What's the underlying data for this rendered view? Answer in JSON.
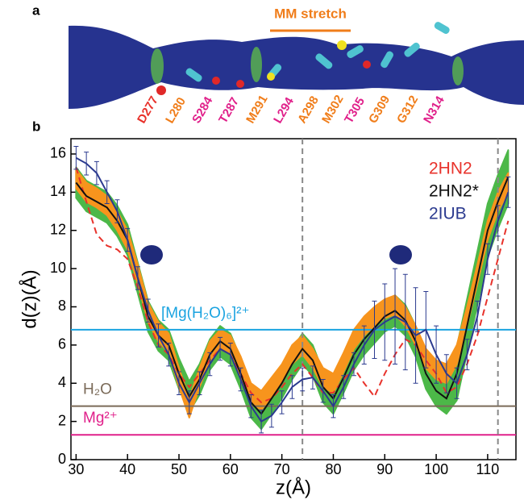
{
  "panel_a": {
    "label": "a",
    "title": "MM stretch",
    "title_color": "#f07d1a",
    "residues": [
      {
        "text": "D277",
        "color": "#e8322b"
      },
      {
        "text": "L280",
        "color": "#f07d1a"
      },
      {
        "text": "S284",
        "color": "#e0208a"
      },
      {
        "text": "T287",
        "color": "#e0208a"
      },
      {
        "text": "M291",
        "color": "#f07d1a"
      },
      {
        "text": "L294",
        "color": "#e0208a"
      },
      {
        "text": "A298",
        "color": "#f07d1a"
      },
      {
        "text": "M302",
        "color": "#f07d1a"
      },
      {
        "text": "T305",
        "color": "#e0208a"
      },
      {
        "text": "G309",
        "color": "#f07d1a"
      },
      {
        "text": "G312",
        "color": "#f07d1a"
      },
      {
        "text": "N314",
        "color": "#e0208a"
      }
    ]
  },
  "chart_data": {
    "type": "line",
    "label": "b",
    "x_label": "z(Å)",
    "y_label": "d(z)(Å)",
    "xlim": [
      29,
      115.5
    ],
    "ylim": [
      0,
      16.8
    ],
    "xticks": [
      30,
      40,
      50,
      60,
      70,
      80,
      90,
      100,
      110
    ],
    "yticks": [
      0,
      2,
      4,
      6,
      8,
      10,
      12,
      14,
      16
    ],
    "legend": "upper right",
    "x": [
      30,
      32,
      34,
      36,
      38,
      40,
      42,
      44,
      46,
      48,
      50,
      52,
      54,
      56,
      58,
      60,
      62,
      64,
      66,
      68,
      70,
      72,
      74,
      76,
      78,
      80,
      82,
      84,
      86,
      88,
      90,
      92,
      94,
      96,
      98,
      100,
      102,
      104,
      106,
      108,
      110,
      112,
      114
    ],
    "bands": [
      {
        "color": "#4cb848",
        "lower": [
          13.7,
          13.0,
          12.7,
          12.4,
          11.7,
          10.7,
          8.7,
          6.7,
          5.7,
          5.2,
          3.7,
          2.5,
          3.4,
          4.7,
          5.4,
          5.0,
          3.7,
          2.2,
          1.6,
          2.4,
          3.2,
          4.2,
          5.0,
          4.4,
          3.0,
          2.4,
          3.5,
          4.7,
          5.5,
          6.1,
          6.7,
          7.0,
          6.5,
          5.4,
          3.7,
          2.8,
          2.4,
          3.1,
          5.6,
          8.1,
          10.6,
          12.1,
          13.4
        ],
        "upper": [
          15.3,
          14.6,
          14.3,
          14.0,
          13.3,
          12.3,
          10.3,
          8.3,
          7.3,
          6.8,
          5.3,
          4.1,
          5.0,
          6.3,
          7.0,
          6.6,
          5.3,
          3.8,
          3.2,
          4.0,
          4.8,
          5.8,
          6.6,
          6.0,
          4.6,
          4.0,
          5.1,
          6.3,
          7.1,
          7.7,
          8.3,
          8.6,
          8.1,
          7.0,
          5.3,
          4.4,
          4.0,
          5.9,
          8.4,
          10.9,
          13.4,
          14.9,
          16.2
        ]
      },
      {
        "color": "#f7941d",
        "lower": [
          14.2,
          13.5,
          13.2,
          12.8,
          12.0,
          11.0,
          9.2,
          7.2,
          6.2,
          5.6,
          3.8,
          2.2,
          3.8,
          5.2,
          5.8,
          5.5,
          4.4,
          3.0,
          2.6,
          3.3,
          4.0,
          5.0,
          5.5,
          4.8,
          3.8,
          3.5,
          4.6,
          5.8,
          6.5,
          7.0,
          7.4,
          7.6,
          7.0,
          6.0,
          4.8,
          4.2,
          4.0,
          5.0,
          7.0,
          9.2,
          11.5,
          13.0,
          14.0
        ],
        "upper": [
          15.2,
          14.5,
          14.2,
          13.8,
          13.0,
          12.0,
          10.2,
          8.2,
          7.2,
          6.6,
          4.8,
          3.2,
          4.8,
          6.2,
          6.8,
          6.5,
          5.4,
          4.0,
          3.6,
          4.3,
          5.0,
          6.0,
          6.5,
          5.8,
          4.8,
          4.5,
          5.6,
          6.8,
          7.5,
          8.0,
          8.4,
          8.6,
          8.0,
          7.0,
          5.8,
          5.2,
          5.0,
          6.0,
          8.0,
          10.2,
          12.5,
          14.0,
          15.0
        ]
      }
    ],
    "series": [
      {
        "name": "2HN2",
        "color": "#e8322b",
        "dashed": true,
        "values": [
          15.3,
          13.5,
          11.8,
          11.2,
          11.0,
          10.5,
          9.0,
          7.2,
          6.0,
          5.5,
          4.5,
          3.8,
          4.5,
          5.2,
          5.8,
          5.5,
          4.5,
          3.5,
          3.0,
          3.2,
          3.8,
          4.5,
          5.0,
          4.3,
          3.5,
          3.5,
          4.2,
          4.8,
          4.0,
          3.3,
          4.5,
          5.5,
          6.3,
          6.0,
          5.2,
          4.5,
          3.5,
          3.8,
          5.0,
          6.5,
          8.5,
          10.5,
          12.5
        ]
      },
      {
        "name": "2HN2*",
        "color": "#111111",
        "dashed": false,
        "values": [
          14.5,
          13.8,
          13.5,
          13.2,
          12.5,
          11.5,
          9.5,
          7.5,
          6.5,
          6.0,
          4.5,
          3.3,
          4.2,
          5.5,
          6.2,
          5.8,
          4.5,
          3.0,
          2.4,
          3.2,
          4.0,
          5.0,
          5.8,
          5.2,
          3.8,
          3.2,
          4.3,
          5.5,
          6.3,
          6.9,
          7.5,
          7.8,
          7.3,
          6.2,
          4.5,
          3.6,
          3.2,
          4.5,
          7.0,
          9.5,
          12.0,
          13.5,
          14.8
        ]
      },
      {
        "name": "2IUB",
        "color": "#2b3a8f",
        "dashed": false,
        "values": [
          15.8,
          15.5,
          15.0,
          14.0,
          13.0,
          11.5,
          9.5,
          7.8,
          6.5,
          5.5,
          4.0,
          3.0,
          4.0,
          5.0,
          5.8,
          5.5,
          4.2,
          2.8,
          2.0,
          2.3,
          3.0,
          3.8,
          4.2,
          4.3,
          3.6,
          2.8,
          3.8,
          5.0,
          6.0,
          6.8,
          7.2,
          7.5,
          7.2,
          6.5,
          6.8,
          5.5,
          4.5,
          4.0,
          5.5,
          7.5,
          10.5,
          12.5,
          14.0
        ],
        "errors": [
          0.6,
          0.6,
          0.6,
          0.6,
          0.6,
          0.6,
          0.6,
          0.6,
          0.6,
          0.6,
          0.6,
          0.6,
          0.6,
          0.6,
          0.6,
          0.6,
          0.6,
          0.6,
          0.6,
          0.6,
          0.6,
          0.6,
          0.6,
          0.6,
          0.6,
          0.6,
          0.6,
          0.6,
          1.0,
          1.5,
          2.0,
          2.5,
          2.5,
          2.5,
          2.0,
          1.5,
          1.0,
          0.8,
          0.8,
          0.8,
          0.8,
          0.8,
          0.8
        ]
      }
    ],
    "hlines": [
      {
        "value": 6.8,
        "label": "[Mg(H₂O)₆]²⁺",
        "color": "#1aa3e0"
      },
      {
        "value": 2.8,
        "label": "H₂O",
        "color": "#7a6a58"
      },
      {
        "value": 1.3,
        "label": "Mg²⁺",
        "color": "#e0208a"
      }
    ],
    "vlines": [
      74,
      112
    ]
  }
}
